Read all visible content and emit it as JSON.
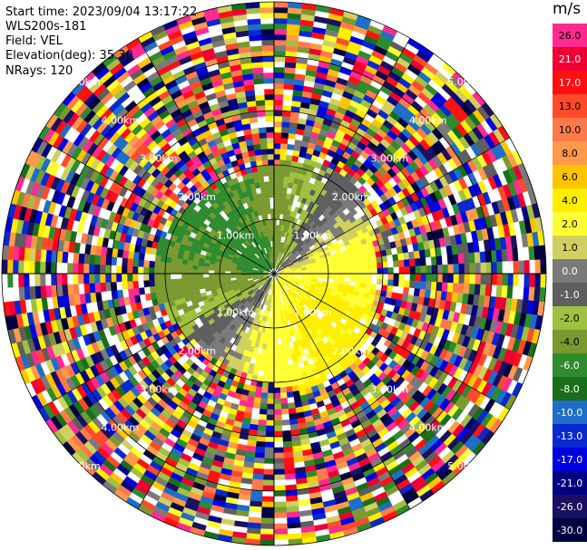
{
  "header": {
    "start_time": "Start time: 2023/09/04 13:17:22",
    "instrument": "WLS200s-181",
    "field": "Field: VEL",
    "elevation": "Elevation(deg): 35.30",
    "nrays": "NRays: 120"
  },
  "chart_data": {
    "type": "heatmap",
    "projection": "polar (PPI scan)",
    "field": "VEL",
    "unit": "m/s",
    "range_rings": [
      "1.00km",
      "2.00km",
      "3.00km",
      "4.00km",
      "5.00km"
    ],
    "colorbar": {
      "label": "m/s",
      "ticks": [
        "26.0",
        "21.0",
        "17.0",
        "13.0",
        "10.0",
        "8.0",
        "6.0",
        "4.0",
        "2.0",
        "1.0",
        "0.0",
        "-1.0",
        "-2.0",
        "-4.0",
        "-6.0",
        "-8.0",
        "-10.0",
        "-13.0",
        "-17.0",
        "-21.0",
        "-26.0",
        "-30.0"
      ],
      "colors": [
        "#ff2a8f",
        "#ee0033",
        "#ff1010",
        "#ff4a2a",
        "#ff7a4a",
        "#ff9a4a",
        "#ffc400",
        "#ffee00",
        "#ffff33",
        "#d0d060",
        "#7a7a7a",
        "#5e5e5e",
        "#a0c040",
        "#7a9a30",
        "#2e8b2e",
        "#1a6e1a",
        "#1e6ec8",
        "#0a28d0",
        "#0000e0",
        "#000080",
        "#1a1060",
        "#000040"
      ]
    },
    "pattern": {
      "inner_region": "valid velocities within ~2 km: positive (yellow/orange) to south-east, negative (green/olive) to north-west, near-zero (grey) elsewhere",
      "outer_region": "noise with random colors beyond ~2 km"
    }
  }
}
